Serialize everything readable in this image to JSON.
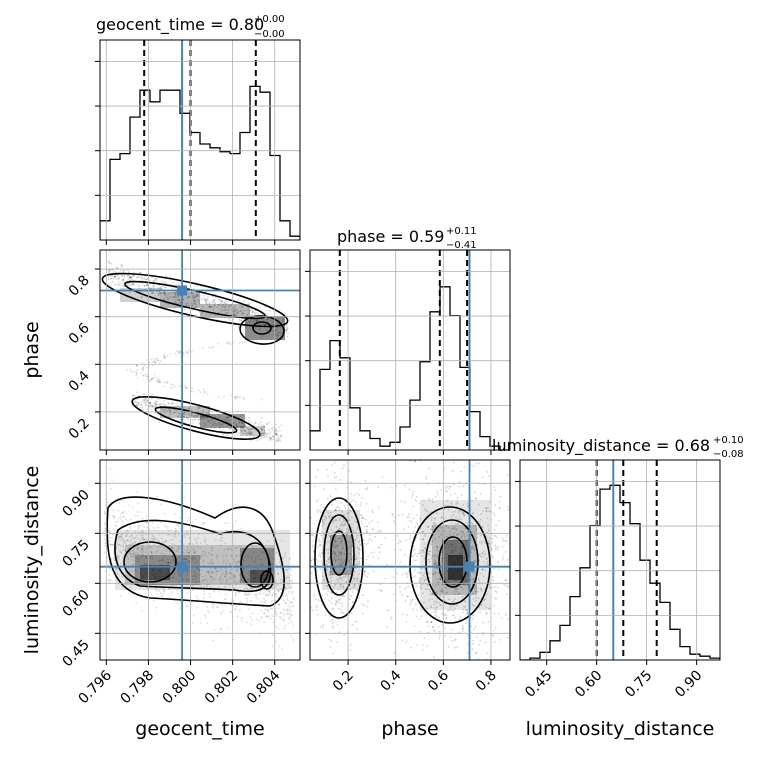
{
  "chart_data": {
    "type": "corner",
    "parameters": [
      "geocent_time",
      "phase",
      "luminosity_distance"
    ],
    "axis_labels": {
      "geocent_time": "geocent_time",
      "phase": "phase",
      "luminosity_distance": "luminosity_distance"
    },
    "titles": {
      "geocent_time": {
        "prefix": "geocent_time = 0.80",
        "plus": "+0.00",
        "minus": "−0.00"
      },
      "phase": {
        "prefix": "phase = 0.59",
        "plus": "+0.11",
        "minus": "−0.41"
      },
      "luminosity_distance": {
        "prefix": "luminosity_distance = 0.68",
        "plus": "+0.10",
        "minus": "−0.08"
      }
    },
    "ranges": {
      "geocent_time": [
        0.7957,
        0.8052
      ],
      "phase": [
        0.04,
        0.88
      ],
      "luminosity_distance": [
        0.37,
        0.97
      ]
    },
    "ticks": {
      "geocent_time": [
        "0.796",
        "0.798",
        "0.800",
        "0.802",
        "0.804"
      ],
      "phase": [
        "0.2",
        "0.4",
        "0.6",
        "0.8"
      ],
      "luminosity_distance": [
        "0.45",
        "0.60",
        "0.75",
        "0.90"
      ]
    },
    "truths": {
      "geocent_time": 0.7996,
      "phase": 0.71,
      "luminosity_distance": 0.65
    },
    "quantiles": {
      "geocent_time": [
        0.7978,
        0.8,
        0.8031
      ],
      "phase": [
        0.165,
        0.585,
        0.7
      ],
      "luminosity_distance": [
        0.6,
        0.68,
        0.78
      ]
    },
    "histograms": {
      "geocent_time": [
        0.1,
        0.42,
        0.45,
        0.64,
        0.78,
        0.72,
        0.78,
        0.78,
        0.66,
        0.56,
        0.5,
        0.48,
        0.46,
        0.45,
        0.56,
        0.8,
        0.77,
        0.44,
        0.1,
        0.02
      ],
      "phase": [
        0.1,
        0.42,
        0.57,
        0.48,
        0.22,
        0.1,
        0.06,
        0.02,
        0.04,
        0.12,
        0.26,
        0.46,
        0.72,
        0.85,
        0.7,
        0.43,
        0.2,
        0.07,
        0.02,
        0.0
      ],
      "luminosity_distance": [
        0.0,
        0.01,
        0.04,
        0.1,
        0.18,
        0.33,
        0.48,
        0.7,
        0.89,
        0.91,
        0.82,
        0.71,
        0.52,
        0.4,
        0.3,
        0.16,
        0.07,
        0.03,
        0.02,
        0.01
      ]
    },
    "grid": true
  }
}
